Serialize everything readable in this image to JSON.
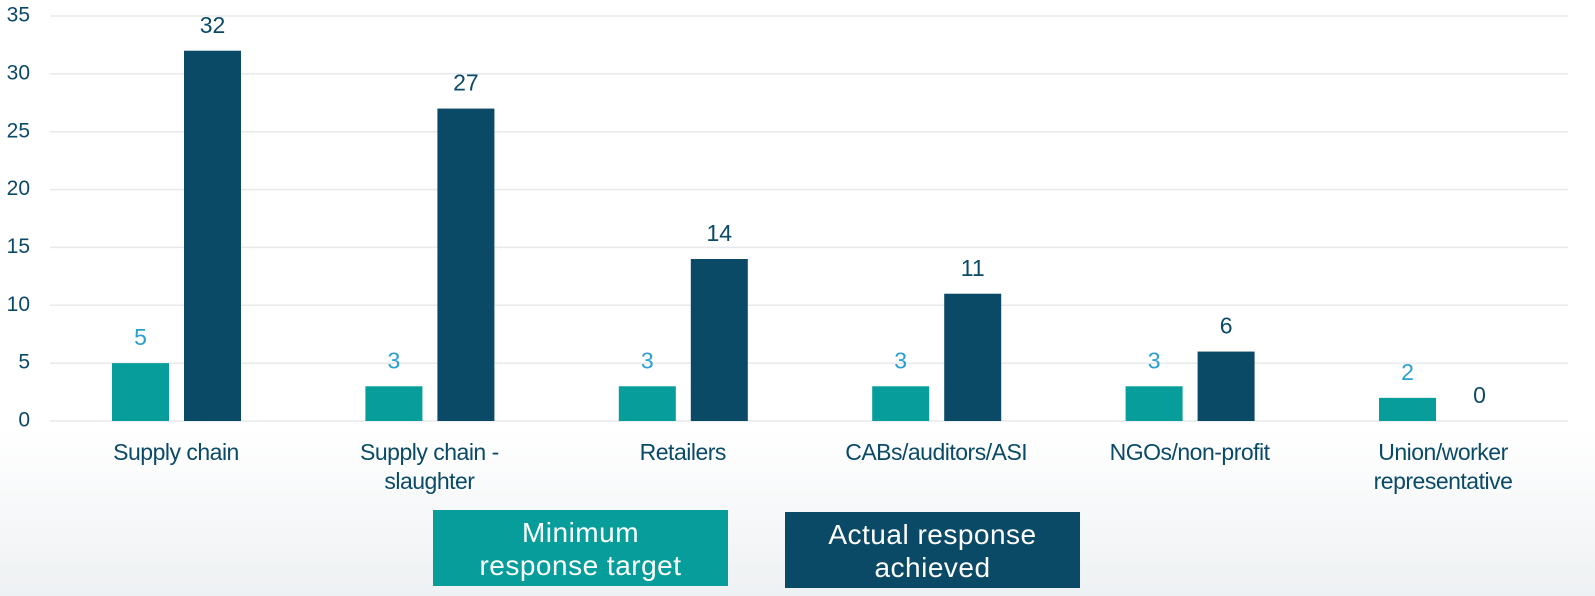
{
  "chart_data": {
    "type": "bar",
    "categories": [
      "Supply chain",
      "Supply chain - slaughter",
      "Retailers",
      "CABs/auditors/ASI",
      "NGOs/non-profit",
      "Union/worker representative"
    ],
    "series": [
      {
        "name": "Minimum response target",
        "color": "#069d9a",
        "label_color": "#2a9fd0",
        "values": [
          5,
          3,
          3,
          3,
          3,
          2
        ]
      },
      {
        "name": "Actual response achieved",
        "color": "#0b4a66",
        "label_color": "#0b4a66",
        "values": [
          32,
          27,
          14,
          11,
          6,
          0
        ]
      }
    ],
    "ylim": [
      0,
      35
    ],
    "yticks": [
      0,
      5,
      10,
      15,
      20,
      25,
      30,
      35
    ],
    "grid": true,
    "legend": "bottom"
  }
}
